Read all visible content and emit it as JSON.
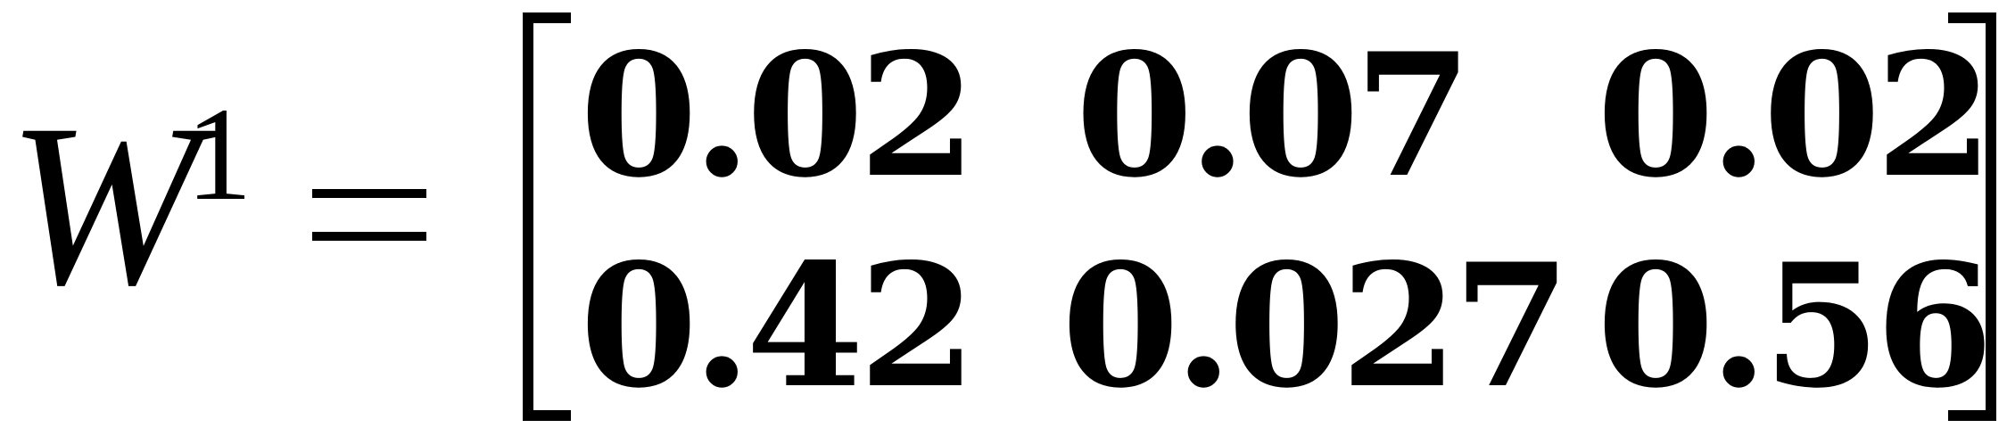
{
  "equation": {
    "variable": "W",
    "superscript": "1",
    "relation": "=",
    "matrix": [
      [
        "0.02",
        "0.07",
        "0.02"
      ],
      [
        "0.42",
        "0.027",
        "0.56"
      ]
    ]
  }
}
